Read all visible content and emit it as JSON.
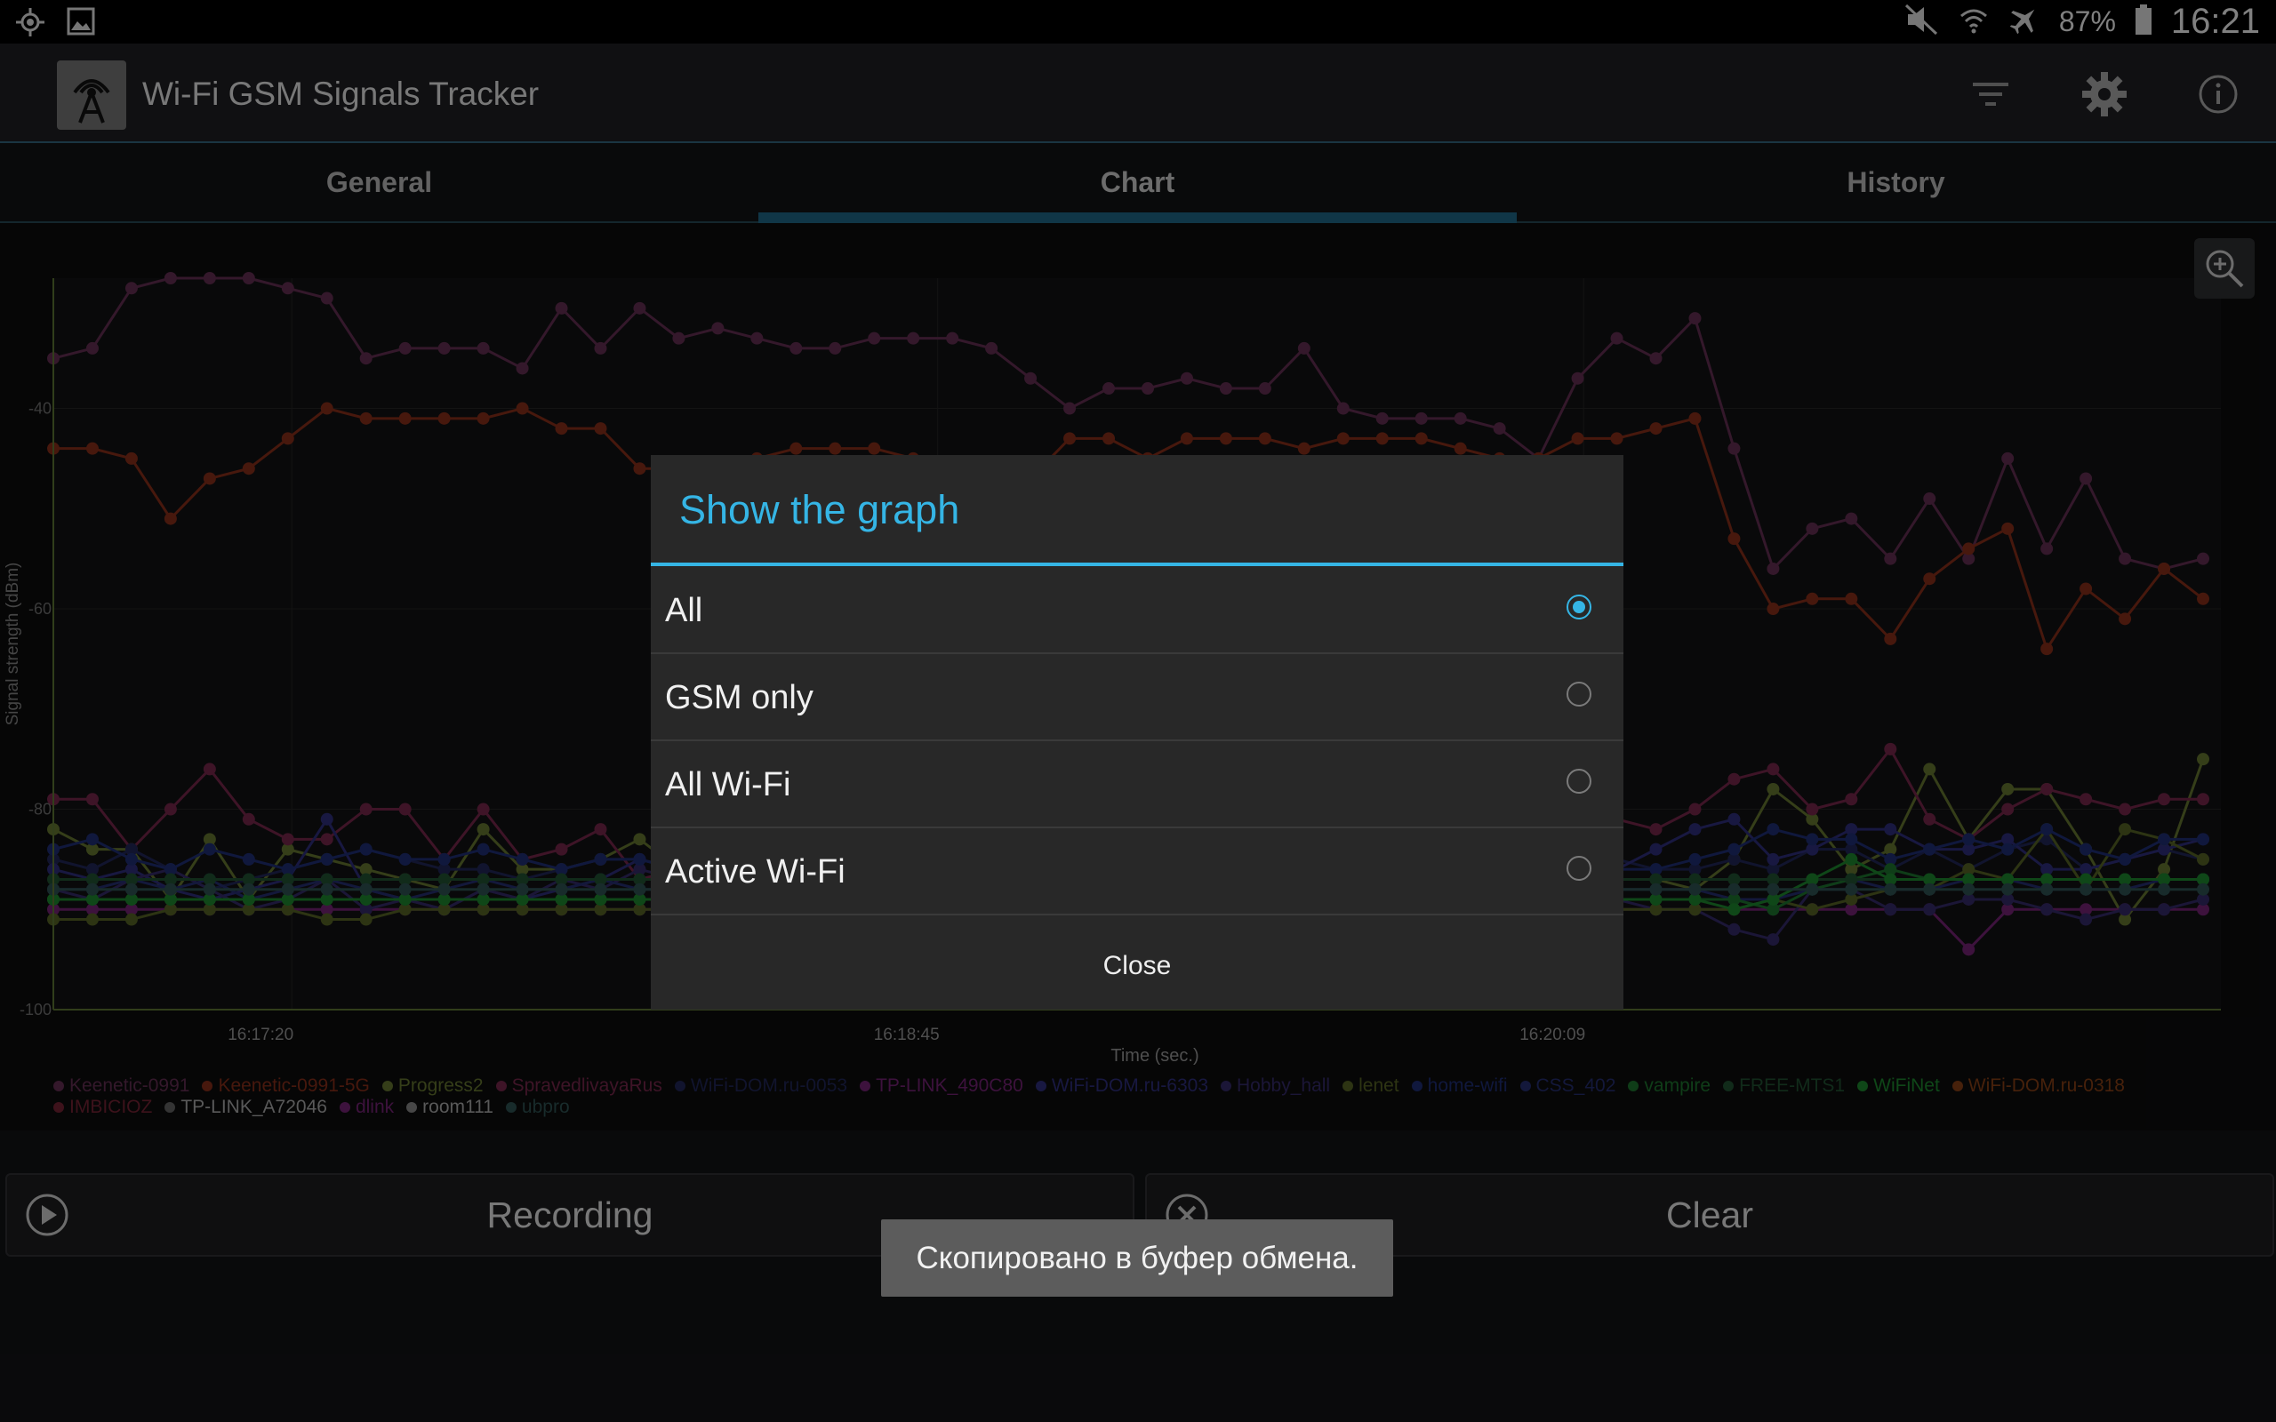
{
  "status_bar": {
    "battery_pct": "87%",
    "clock": "16:21"
  },
  "app": {
    "title": "Wi-Fi GSM Signals Tracker"
  },
  "tabs": [
    {
      "label": "General",
      "selected": false
    },
    {
      "label": "Chart",
      "selected": true
    },
    {
      "label": "History",
      "selected": false
    }
  ],
  "chart_data": {
    "type": "line",
    "ylabel": "Signal strength (dBm)",
    "xlabel": "Time (sec.)",
    "x_ticks": [
      "16:17:20",
      "16:18:45",
      "16:20:09"
    ],
    "y_ticks": [
      "-40",
      "-60",
      "-80",
      "-100"
    ],
    "ylim": [
      -100,
      -27
    ],
    "grid": true,
    "legend_placement": "bottom",
    "series": [
      {
        "name": "Keenetic-0991",
        "color": "#5a2a4a",
        "values": [
          -35,
          -34,
          -28,
          -27,
          -27,
          -27,
          -28,
          -29,
          -35,
          -34,
          -34,
          -34,
          -36,
          -30,
          -34,
          -30,
          -33,
          -32,
          -33,
          -34,
          -34,
          -33,
          -33,
          -33,
          -34,
          -37,
          -40,
          -38,
          -38,
          -37,
          -38,
          -38,
          -34,
          -40,
          -41,
          -41,
          -41,
          -42,
          -45,
          -37,
          -33,
          -35,
          -31,
          -44,
          -56,
          -52,
          -51,
          -55,
          -49,
          -55,
          -45,
          -54,
          -47,
          -55,
          -56,
          -55
        ]
      },
      {
        "name": "Keenetic-0991-5G",
        "color": "#7a2a18",
        "values": [
          -44,
          -44,
          -45,
          -51,
          -47,
          -46,
          -43,
          -40,
          -41,
          -41,
          -41,
          -41,
          -40,
          -42,
          -42,
          -46,
          -46,
          -46,
          -45,
          -44,
          -44,
          -44,
          -45,
          -46,
          -47,
          -47,
          -43,
          -43,
          -45,
          -43,
          -43,
          -43,
          -44,
          -43,
          -43,
          -43,
          -44,
          -45,
          -45,
          -43,
          -43,
          -42,
          -41,
          -53,
          -60,
          -59,
          -59,
          -63,
          -57,
          -54,
          -52,
          -64,
          -58,
          -61,
          -56,
          -59
        ]
      },
      {
        "name": "Progress2",
        "color": "#5c6b2c",
        "values": [
          -82,
          -84,
          -84,
          -89,
          -83,
          -89,
          -84,
          -85,
          -86,
          -87,
          -88,
          -82,
          -86,
          -86,
          -85,
          -83,
          -86,
          -88,
          -85,
          -84,
          -86,
          -86,
          -84,
          -85,
          -86,
          -86,
          -85,
          -86,
          -84,
          -85,
          -86,
          -86,
          -84,
          -86,
          -86,
          -86,
          -85,
          -84,
          -86,
          -87,
          -87,
          -87,
          -88,
          -85,
          -78,
          -81,
          -86,
          -84,
          -76,
          -83,
          -78,
          -78,
          -84,
          -91,
          -86,
          -75
        ]
      },
      {
        "name": "SpravedlivayaRus",
        "color": "#6b2444",
        "values": [
          -79,
          -79,
          -84,
          -80,
          -76,
          -81,
          -83,
          -83,
          -80,
          -80,
          -85,
          -80,
          -85,
          -84,
          -82,
          -87,
          -86,
          -84,
          -84,
          -83,
          -84,
          -84,
          -85,
          -86,
          -86,
          -85,
          -85,
          -84,
          -85,
          -86,
          -86,
          -85,
          -84,
          -85,
          -85,
          -85,
          -84,
          -83,
          -84,
          -85,
          -81,
          -82,
          -80,
          -77,
          -76,
          -80,
          -79,
          -74,
          -81,
          -83,
          -80,
          -78,
          -79,
          -80,
          -79,
          -79
        ]
      },
      {
        "name": "WiFi-DOM.ru-0053",
        "color": "#1e2450",
        "values": [
          -85,
          -86,
          -84,
          -86,
          -88,
          -87,
          -86,
          -85,
          -84,
          -85,
          -86,
          -86,
          -87,
          -86,
          -85,
          -85,
          -86,
          -87,
          -86,
          -85,
          -85,
          -86,
          -86,
          -86,
          -85,
          -85,
          -86,
          -86,
          -86,
          -86,
          -85,
          -85,
          -86,
          -86,
          -86,
          -85,
          -85,
          -86,
          -86,
          -86,
          -85,
          -86,
          -86,
          -85,
          -86,
          -84,
          -84,
          -86,
          -84,
          -86,
          -84,
          -83,
          -86,
          -85,
          -84,
          -85
        ]
      },
      {
        "name": "TP-LINK_490C80",
        "color": "#6a1f6a",
        "values": [
          -90,
          -90,
          -90,
          -90,
          -90,
          -90,
          -90,
          -90,
          -90,
          -90,
          -90,
          -90,
          -90,
          -90,
          -90,
          -90,
          -90,
          -90,
          -90,
          -90,
          -90,
          -90,
          -90,
          -90,
          -90,
          -90,
          -90,
          -90,
          -90,
          -90,
          -90,
          -90,
          -90,
          -90,
          -90,
          -90,
          -90,
          -90,
          -90,
          -90,
          -90,
          -90,
          -90,
          -90,
          -90,
          -90,
          -90,
          -90,
          -90,
          -94,
          -90,
          -90,
          -90,
          -90,
          -90,
          -90
        ]
      },
      {
        "name": "WiFi-DOM.ru-6303",
        "color": "#2a2a70",
        "values": [
          -86,
          -87,
          -86,
          -88,
          -89,
          -88,
          -87,
          -81,
          -88,
          -89,
          -90,
          -88,
          -89,
          -88,
          -87,
          -85,
          -86,
          -88,
          -87,
          -86,
          -86,
          -87,
          -86,
          -86,
          -87,
          -86,
          -87,
          -87,
          -86,
          -86,
          -86,
          -86,
          -86,
          -86,
          -87,
          -86,
          -86,
          -87,
          -87,
          -86,
          -86,
          -84,
          -82,
          -81,
          -85,
          -84,
          -82,
          -82,
          -84,
          -84,
          -83,
          -86,
          -86,
          -85,
          -84,
          -83
        ]
      },
      {
        "name": "Hobby_hall",
        "color": "#2f2660",
        "values": [
          -88,
          -89,
          -87,
          -86,
          -88,
          -90,
          -89,
          -87,
          -90,
          -89,
          -90,
          -88,
          -89,
          -87,
          -88,
          -86,
          -87,
          -88,
          -89,
          -90,
          -89,
          -88,
          -88,
          -88,
          -88,
          -88,
          -88,
          -88,
          -89,
          -89,
          -88,
          -88,
          -89,
          -89,
          -88,
          -88,
          -89,
          -89,
          -88,
          -89,
          -89,
          -90,
          -90,
          -92,
          -93,
          -88,
          -88,
          -90,
          -90,
          -89,
          -89,
          -90,
          -91,
          -90,
          -90,
          -89
        ]
      },
      {
        "name": "lenet",
        "color": "#4e5a22",
        "values": [
          -91,
          -91,
          -91,
          -90,
          -90,
          -90,
          -90,
          -91,
          -91,
          -90,
          -90,
          -90,
          -90,
          -90,
          -90,
          -90,
          -90,
          -89,
          -89,
          -89,
          -89,
          -89,
          -89,
          -89,
          -89,
          -89,
          -89,
          -89,
          -89,
          -89,
          -89,
          -89,
          -89,
          -89,
          -89,
          -89,
          -89,
          -89,
          -89,
          -89,
          -90,
          -90,
          -90,
          -90,
          -89,
          -90,
          -89,
          -88,
          -88,
          -86,
          -87,
          -82,
          -88,
          -82,
          -83,
          -85
        ]
      },
      {
        "name": "home-wifi",
        "color": "#1c2a6a",
        "values": [
          -84,
          -83,
          -85,
          -86,
          -84,
          -85,
          -86,
          -85,
          -84,
          -85,
          -85,
          -84,
          -85,
          -86,
          -85,
          -85,
          -86,
          -86,
          -85,
          -85,
          -86,
          -86,
          -86,
          -86,
          -85,
          -85,
          -86,
          -86,
          -85,
          -86,
          -86,
          -85,
          -85,
          -85,
          -86,
          -86,
          -86,
          -85,
          -85,
          -85,
          -86,
          -86,
          -85,
          -84,
          -82,
          -83,
          -83,
          -85,
          -84,
          -83,
          -84,
          -82,
          -84,
          -85,
          -83,
          -83
        ]
      },
      {
        "name": "CSS_402",
        "color": "#222a66",
        "values": [
          -88,
          -88,
          -87,
          -88,
          -87,
          -89,
          -88,
          -87,
          -88,
          -89,
          -88,
          -87,
          -88,
          -88,
          -87,
          -88,
          -88,
          -89,
          -88,
          -88,
          -87,
          -88,
          -88,
          -88,
          -87,
          -88,
          -88,
          -88,
          -88,
          -88,
          -87,
          -88,
          -88,
          -88,
          -88,
          -88,
          -87,
          -88,
          -88,
          -88,
          -88,
          -88,
          -88,
          -89,
          -89,
          -88,
          -87,
          -88,
          -88,
          -87,
          -87,
          -88,
          -88,
          -88,
          -87,
          -87
        ]
      },
      {
        "name": "vampire",
        "color": "#1b6a2a",
        "values": [
          -89,
          -89,
          -89,
          -89,
          -89,
          -89,
          -89,
          -89,
          -89,
          -89,
          -89,
          -89,
          -89,
          -89,
          -89,
          -89,
          -89,
          -89,
          -89,
          -89,
          -89,
          -89,
          -89,
          -89,
          -89,
          -89,
          -89,
          -89,
          -89,
          -89,
          -89,
          -89,
          -89,
          -89,
          -89,
          -89,
          -89,
          -89,
          -89,
          -89,
          -89,
          -89,
          -89,
          -89,
          -90,
          -88,
          -87,
          -86,
          -87,
          -87,
          -87,
          -87,
          -87,
          -87,
          -87,
          -87
        ]
      },
      {
        "name": "FREE-MTS1",
        "color": "#1e4a2e",
        "values": [
          -87,
          -87,
          -87,
          -87,
          -87,
          -87,
          -87,
          -87,
          -87,
          -87,
          -87,
          -87,
          -87,
          -87,
          -87,
          -87,
          -87,
          -87,
          -87,
          -87,
          -87,
          -87,
          -87,
          -87,
          -87,
          -87,
          -87,
          -87,
          -87,
          -87,
          -87,
          -87,
          -87,
          -87,
          -87,
          -87,
          -87,
          -87,
          -87,
          -87,
          -87,
          -87,
          -87,
          -87,
          -87,
          -87,
          -87,
          -87,
          -87,
          -87,
          -87,
          -87,
          -87,
          -87,
          -87,
          -87
        ]
      },
      {
        "name": "WiFiNet",
        "color": "#1a7a2a",
        "values": [
          -89,
          -89,
          -89,
          -89,
          -89,
          -89,
          -89,
          -89,
          -89,
          -89,
          -89,
          -89,
          -89,
          -89,
          -89,
          -89,
          -89,
          -89,
          -89,
          -89,
          -89,
          -89,
          -89,
          -89,
          -89,
          -89,
          -89,
          -89,
          -89,
          -89,
          -89,
          -89,
          -89,
          -89,
          -89,
          -89,
          -89,
          -89,
          -89,
          -89,
          -89,
          -89,
          -89,
          -90,
          -89,
          -87,
          -85,
          -87,
          -87,
          -87,
          -87,
          -87,
          -87,
          -87,
          -87,
          -87
        ]
      },
      {
        "name": "WiFi-DOM.ru-0318",
        "color": "#7a3a14",
        "values": []
      },
      {
        "name": "IMBICIOZ",
        "color": "#6a2030",
        "values": []
      },
      {
        "name": "TP-LINK_A72046",
        "color": "#5a5a5a",
        "values": []
      },
      {
        "name": "dlink",
        "color": "#6a206a",
        "values": []
      },
      {
        "name": "room111",
        "color": "#7a7a7a",
        "values": []
      },
      {
        "name": "ubpro",
        "color": "#2a4a4a",
        "values": [
          -88,
          -88,
          -88,
          -88,
          -88,
          -88,
          -88,
          -88,
          -88,
          -88,
          -88,
          -88,
          -88,
          -88,
          -88,
          -88,
          -88,
          -88,
          -88,
          -88,
          -88,
          -88,
          -88,
          -88,
          -88,
          -88,
          -88,
          -88,
          -88,
          -88,
          -88,
          -88,
          -88,
          -88,
          -88,
          -88,
          -88,
          -88,
          -88,
          -88,
          -88,
          -88,
          -88,
          -88,
          -88,
          -88,
          -88,
          -88,
          -88,
          -88,
          -88,
          -88,
          -88,
          -88,
          -88,
          -88
        ]
      }
    ]
  },
  "dialog": {
    "title": "Show the graph",
    "options": [
      {
        "label": "All",
        "checked": true
      },
      {
        "label": "GSM only",
        "checked": false
      },
      {
        "label": "All Wi-Fi",
        "checked": false
      },
      {
        "label": "Active Wi-Fi",
        "checked": false
      }
    ],
    "close_label": "Close"
  },
  "buttons": {
    "recording_label": "Recording",
    "clear_label": "Clear"
  },
  "toast": "Скопировано в буфер обмена.",
  "icons": {
    "status_left": [
      "location-icon",
      "image-icon"
    ],
    "status_right": [
      "mute-icon",
      "wifi-icon",
      "airplane-icon",
      "battery-icon"
    ],
    "actionbar": [
      "filter-icon",
      "gear-icon",
      "info-icon"
    ]
  },
  "colors": {
    "accent": "#35b5e5",
    "tab_indicator": "#1d5d7a"
  }
}
